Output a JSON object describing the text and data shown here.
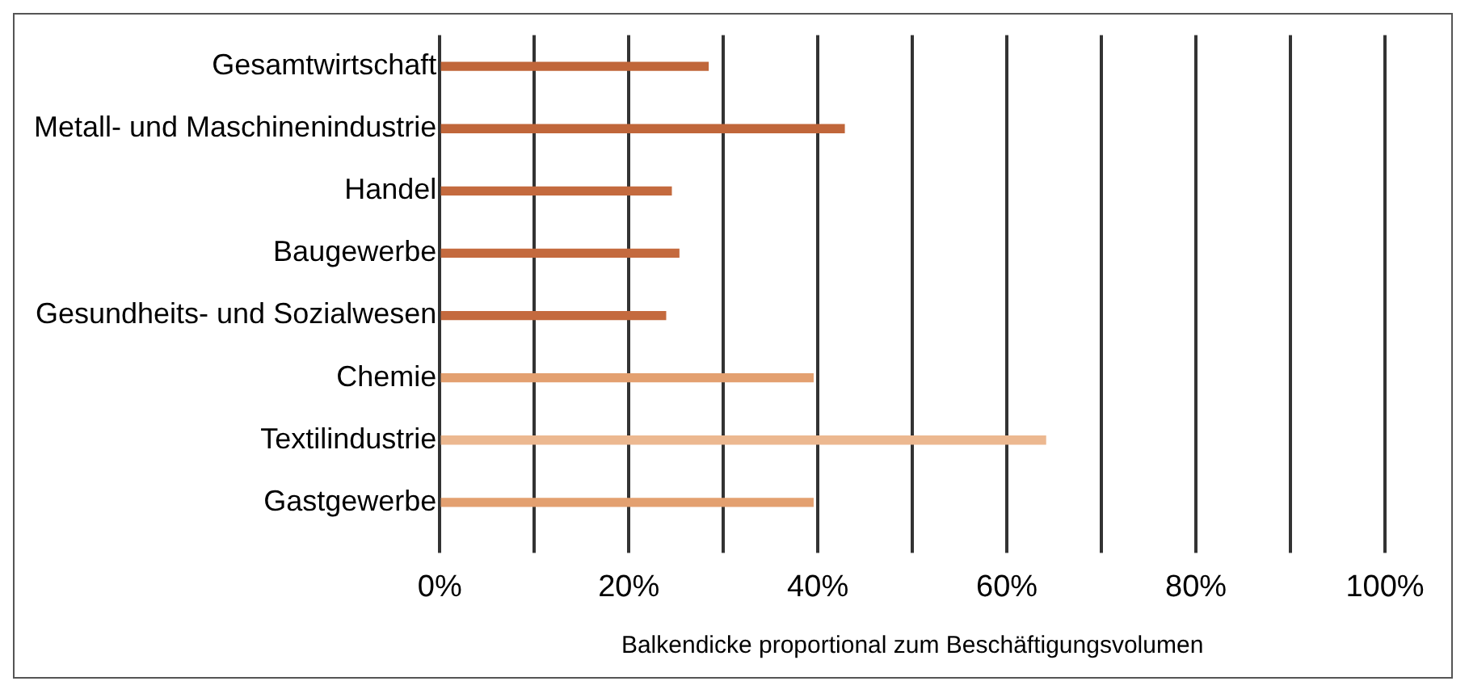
{
  "chart_data": {
    "type": "bar",
    "orientation": "horizontal",
    "xlabel": "Balkendicke proportional zum Beschäftigungsvolumen",
    "categories": [
      "Gesamtwirtschaft",
      "Metall- und Maschinenindustrie",
      "Handel",
      "Baugewerbe",
      "Gesundheits- und Sozialwesen",
      "Chemie",
      "Textilindustrie",
      "Gastgewerbe"
    ],
    "values": [
      28.4,
      42.8,
      24.5,
      25.3,
      23.9,
      39.5,
      64.1,
      39.5
    ],
    "colors": [
      "#c0663a",
      "#c0663a",
      "#c46a3e",
      "#c46a3e",
      "#c46a3e",
      "#e3a070",
      "#ecb890",
      "#e3a070"
    ],
    "xlim": [
      0,
      100
    ],
    "xticks": [
      {
        "value": 0,
        "label": "0%"
      },
      {
        "value": 10,
        "label": null
      },
      {
        "value": 20,
        "label": "20%"
      },
      {
        "value": 30,
        "label": null
      },
      {
        "value": 40,
        "label": "40%"
      },
      {
        "value": 50,
        "label": null
      },
      {
        "value": 60,
        "label": "60%"
      },
      {
        "value": 70,
        "label": null
      },
      {
        "value": 80,
        "label": "80%"
      },
      {
        "value": 90,
        "label": null
      },
      {
        "value": 100,
        "label": "100%"
      }
    ],
    "grid": "x",
    "legend": false
  }
}
